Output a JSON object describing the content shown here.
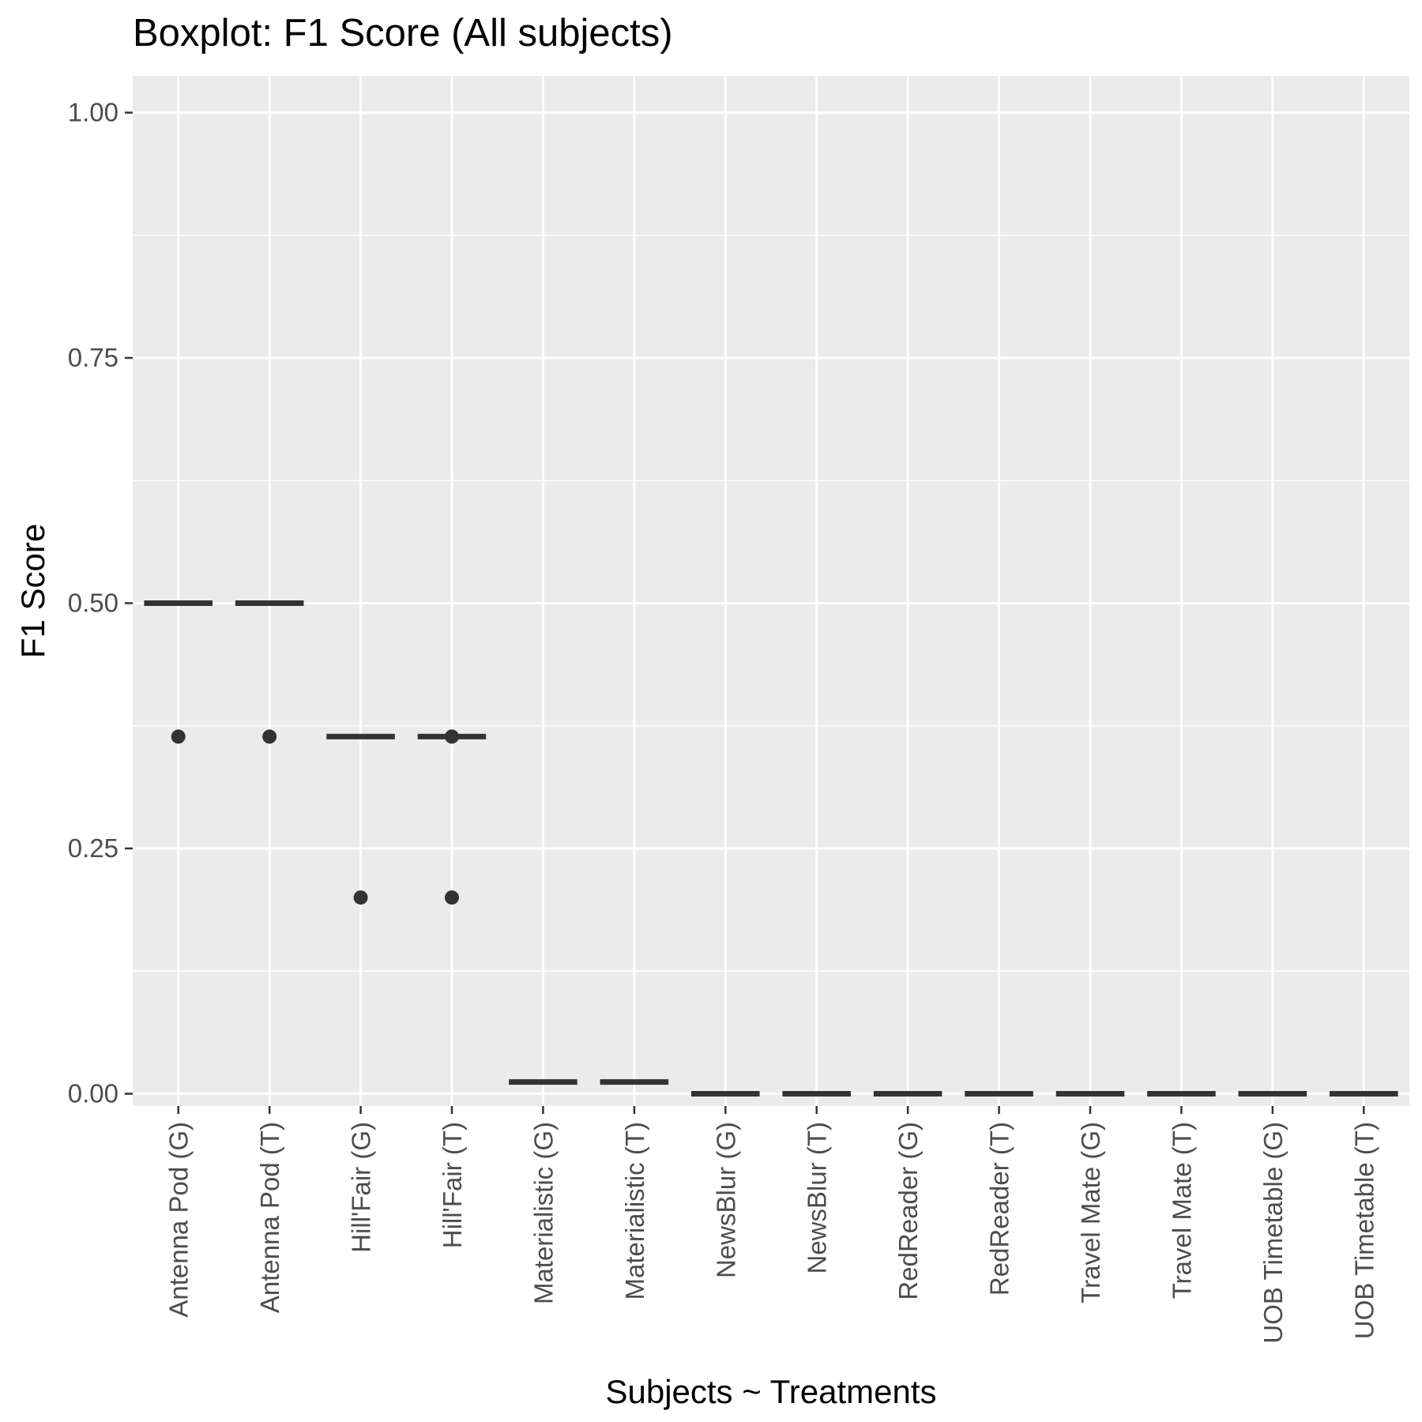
{
  "chart_data": {
    "type": "boxplot",
    "title": "Boxplot: F1 Score (All subjects)",
    "xlabel": "Subjects ~ Treatments",
    "ylabel": "F1 Score",
    "ylim": [
      -0.0125,
      1.0375
    ],
    "yticks": [
      0.0,
      0.25,
      0.5,
      0.75,
      1.0
    ],
    "ytick_labels": [
      "0.00",
      "0.25",
      "0.50",
      "0.75",
      "1.00"
    ],
    "grid": true,
    "categories": [
      "Antenna Pod (G)",
      "Antenna Pod (T)",
      "Hill'Fair (G)",
      "Hill'Fair (T)",
      "Materialistic (G)",
      "Materialistic (T)",
      "NewsBlur (G)",
      "NewsBlur (T)",
      "RedReader (G)",
      "RedReader (T)",
      "Travel Mate (G)",
      "Travel Mate (T)",
      "UOB Timetable (G)",
      "UOB Timetable (T)"
    ],
    "boxes": [
      {
        "median": 0.5,
        "q1": 0.5,
        "q3": 0.5,
        "whisker_low": 0.5,
        "whisker_high": 0.5,
        "outliers": [
          0.364
        ]
      },
      {
        "median": 0.5,
        "q1": 0.5,
        "q3": 0.5,
        "whisker_low": 0.5,
        "whisker_high": 0.5,
        "outliers": [
          0.364
        ]
      },
      {
        "median": 0.364,
        "q1": 0.364,
        "q3": 0.364,
        "whisker_low": 0.364,
        "whisker_high": 0.364,
        "outliers": [
          0.2
        ]
      },
      {
        "median": 0.364,
        "q1": 0.364,
        "q3": 0.364,
        "whisker_low": 0.364,
        "whisker_high": 0.364,
        "outliers": [
          0.364,
          0.2
        ]
      },
      {
        "median": 0.012,
        "q1": 0.012,
        "q3": 0.012,
        "whisker_low": 0.012,
        "whisker_high": 0.012,
        "outliers": []
      },
      {
        "median": 0.012,
        "q1": 0.012,
        "q3": 0.012,
        "whisker_low": 0.012,
        "whisker_high": 0.012,
        "outliers": []
      },
      {
        "median": 0.0,
        "q1": 0.0,
        "q3": 0.0,
        "whisker_low": 0.0,
        "whisker_high": 0.0,
        "outliers": []
      },
      {
        "median": 0.0,
        "q1": 0.0,
        "q3": 0.0,
        "whisker_low": 0.0,
        "whisker_high": 0.0,
        "outliers": []
      },
      {
        "median": 0.0,
        "q1": 0.0,
        "q3": 0.0,
        "whisker_low": 0.0,
        "whisker_high": 0.0,
        "outliers": []
      },
      {
        "median": 0.0,
        "q1": 0.0,
        "q3": 0.0,
        "whisker_low": 0.0,
        "whisker_high": 0.0,
        "outliers": []
      },
      {
        "median": 0.0,
        "q1": 0.0,
        "q3": 0.0,
        "whisker_low": 0.0,
        "whisker_high": 0.0,
        "outliers": []
      },
      {
        "median": 0.0,
        "q1": 0.0,
        "q3": 0.0,
        "whisker_low": 0.0,
        "whisker_high": 0.0,
        "outliers": []
      },
      {
        "median": 0.0,
        "q1": 0.0,
        "q3": 0.0,
        "whisker_low": 0.0,
        "whisker_high": 0.0,
        "outliers": []
      },
      {
        "median": 0.0,
        "q1": 0.0,
        "q3": 0.0,
        "whisker_low": 0.0,
        "whisker_high": 0.0,
        "outliers": []
      }
    ],
    "colors": {
      "panel_background": "#ebebeb",
      "grid_major": "#ffffff",
      "grid_minor": "#ffffff",
      "box": "#333333",
      "outlier": "#333333",
      "tick_label": "#4d4d4d",
      "tick_mark": "#333333",
      "text": "#000000"
    }
  }
}
